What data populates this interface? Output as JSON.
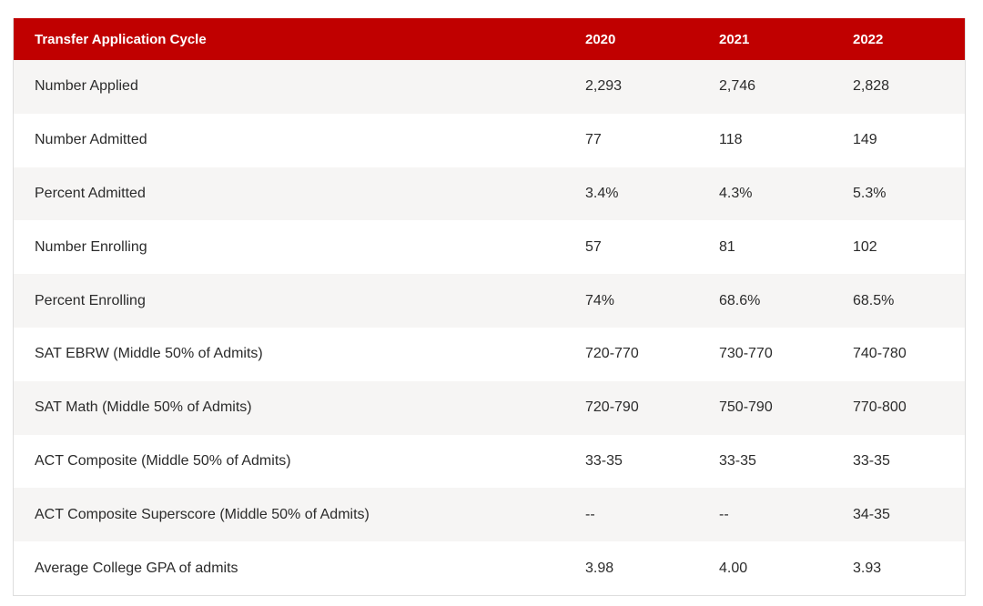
{
  "table": {
    "headers": [
      "Transfer Application Cycle",
      "2020",
      "2021",
      "2022"
    ],
    "rows": [
      [
        "Number Applied",
        "2,293",
        "2,746",
        "2,828"
      ],
      [
        "Number Admitted",
        "77",
        "118",
        "149"
      ],
      [
        "Percent Admitted",
        "3.4%",
        "4.3%",
        "5.3%"
      ],
      [
        "Number Enrolling",
        "57",
        "81",
        "102"
      ],
      [
        "Percent Enrolling",
        "74%",
        "68.6%",
        "68.5%"
      ],
      [
        "SAT EBRW (Middle 50% of Admits)",
        "720-770",
        "730-770",
        "740-780"
      ],
      [
        "SAT Math (Middle 50% of Admits)",
        "720-790",
        "750-790",
        "770-800"
      ],
      [
        "ACT Composite (Middle 50% of Admits)",
        "33-35",
        "33-35",
        "33-35"
      ],
      [
        "ACT Composite Superscore (Middle 50% of Admits)",
        "--",
        "--",
        "34-35"
      ],
      [
        "Average College GPA of admits",
        "3.98",
        "4.00",
        "3.93"
      ]
    ]
  },
  "colors": {
    "header_bg": "#c00000",
    "header_text": "#ffffff",
    "row_alt_bg": "#f6f5f4",
    "row_bg": "#ffffff",
    "border": "#dedede"
  }
}
